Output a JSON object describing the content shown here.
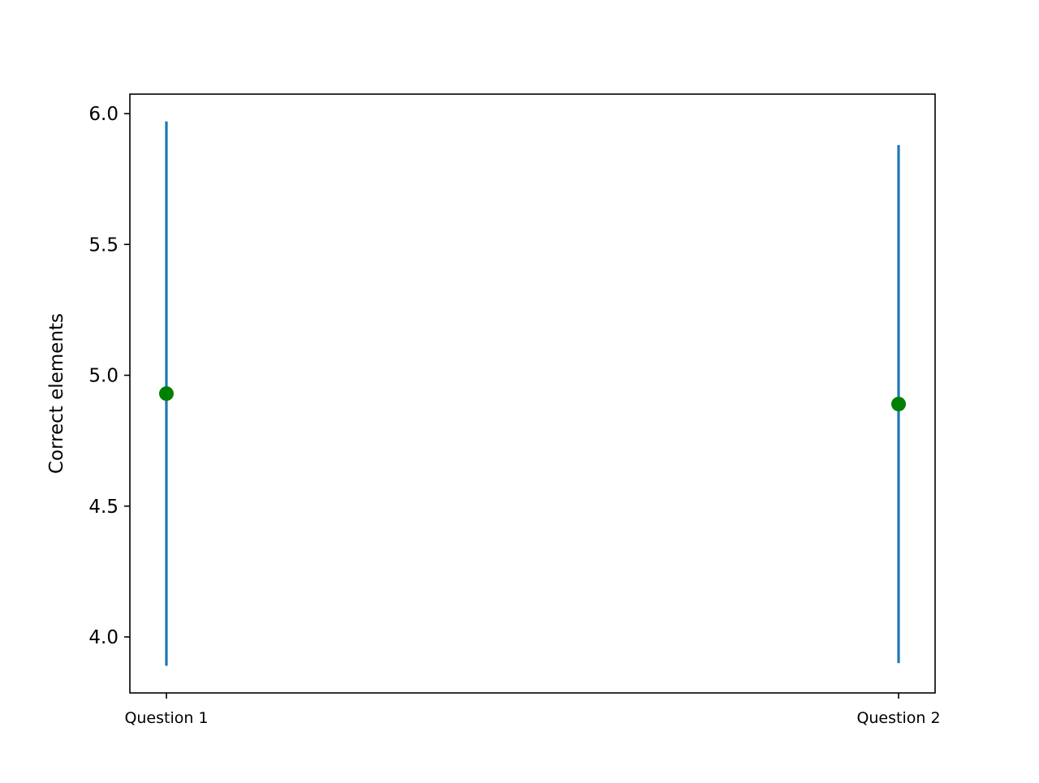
{
  "chart_data": {
    "type": "scatter",
    "categories": [
      "Question 1",
      "Question 2"
    ],
    "series": [
      {
        "values": [
          4.93,
          4.89
        ],
        "error_low": [
          3.89,
          3.9
        ],
        "error_high": [
          5.97,
          5.88
        ]
      }
    ],
    "xlabel": "",
    "ylabel": "Correct elements",
    "ylim": [
      3.79,
      6.08
    ],
    "yticks": [
      "4.0",
      "4.5",
      "5.0",
      "5.5",
      "6.0"
    ],
    "ytick_values": [
      4.0,
      4.5,
      5.0,
      5.5,
      6.0
    ],
    "grid": false,
    "colors": {
      "marker": "#008000",
      "errorbar": "#1f77b4",
      "axes": "#000000"
    }
  }
}
